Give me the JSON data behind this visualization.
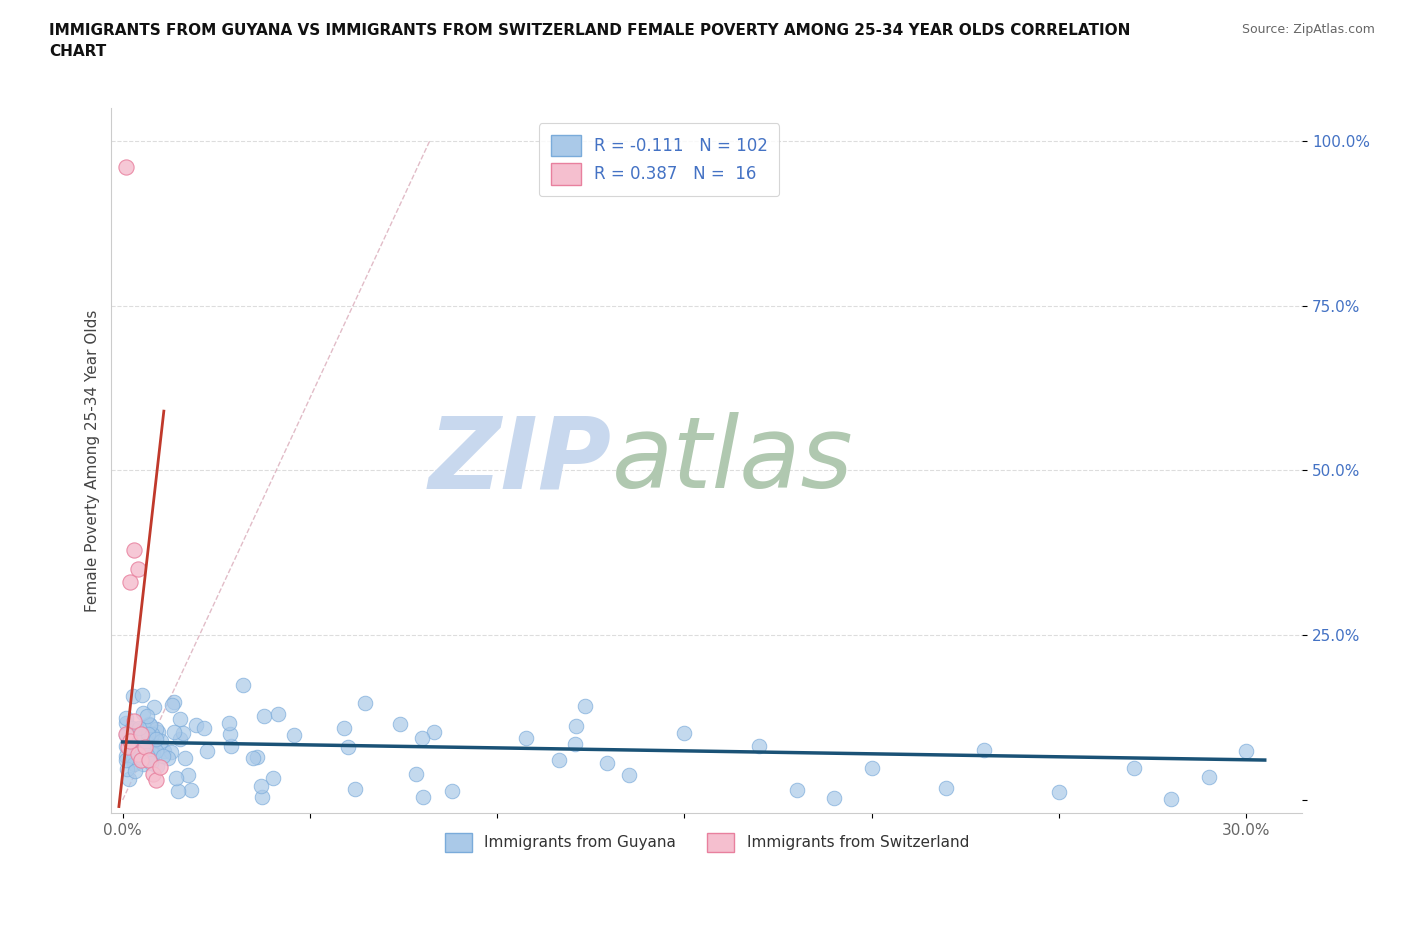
{
  "title": "IMMIGRANTS FROM GUYANA VS IMMIGRANTS FROM SWITZERLAND FEMALE POVERTY AMONG 25-34 YEAR OLDS CORRELATION\nCHART",
  "source": "Source: ZipAtlas.com",
  "xlim": [
    -0.003,
    0.315
  ],
  "ylim": [
    -0.02,
    1.05
  ],
  "guyana_color": "#aac9e8",
  "guyana_edge": "#7aabda",
  "swiss_color": "#f5bfcf",
  "swiss_edge": "#e8809e",
  "trend_blue": "#1a5276",
  "trend_pink": "#c0392b",
  "diag_color": "#d5a0b0",
  "R_guyana": -0.111,
  "N_guyana": 102,
  "R_swiss": 0.387,
  "N_swiss": 16,
  "watermark_zip": "ZIP",
  "watermark_atlas": "atlas",
  "watermark_color_zip": "#c8d8ee",
  "watermark_color_atlas": "#b0c8b0",
  "legend_label_guyana": "Immigrants from Guyana",
  "legend_label_swiss": "Immigrants from Switzerland",
  "ylabel": "Female Poverty Among 25-34 Year Olds",
  "ytick_labels": [
    "",
    "25.0%",
    "50.0%",
    "75.0%",
    "100.0%"
  ],
  "yticks": [
    0.0,
    0.25,
    0.5,
    0.75,
    1.0
  ],
  "xtick_labels": [
    "0.0%",
    "",
    "",
    "",
    "",
    "",
    "30.0%"
  ],
  "xticks": [
    0.0,
    0.05,
    0.1,
    0.15,
    0.2,
    0.25,
    0.3
  ],
  "tick_color_right": "#4472c4",
  "tick_color_bottom": "#666666"
}
